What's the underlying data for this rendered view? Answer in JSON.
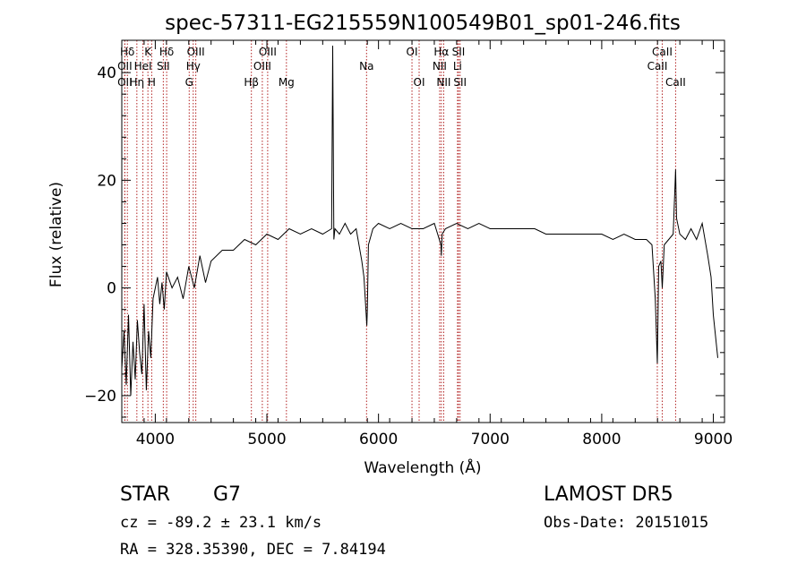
{
  "chart_data": {
    "type": "line",
    "title": "spec-57311-EG215559N100549B01_sp01-246.fits",
    "xlabel": "Wavelength (Å)",
    "ylabel": "Flux (relative)",
    "xlim": [
      3700,
      9100
    ],
    "ylim": [
      -25,
      46
    ],
    "xticks": [
      4000,
      5000,
      6000,
      7000,
      8000,
      9000
    ],
    "yticks": [
      -20,
      0,
      20,
      40
    ],
    "grid": false,
    "series": [
      {
        "color": "#000000",
        "x": [
          3700,
          3720,
          3740,
          3760,
          3780,
          3800,
          3820,
          3840,
          3860,
          3880,
          3900,
          3920,
          3940,
          3960,
          3980,
          4000,
          4020,
          4040,
          4060,
          4080,
          4100,
          4150,
          4200,
          4250,
          4300,
          4350,
          4400,
          4450,
          4500,
          4600,
          4700,
          4800,
          4900,
          5000,
          5100,
          5200,
          5300,
          5400,
          5500,
          5580,
          5590,
          5600,
          5610,
          5650,
          5700,
          5750,
          5800,
          5850,
          5870,
          5890,
          5895,
          5900,
          5910,
          5950,
          6000,
          6100,
          6200,
          6300,
          6400,
          6500,
          6560,
          6563,
          6570,
          6600,
          6700,
          6800,
          6900,
          7000,
          7100,
          7200,
          7300,
          7400,
          7500,
          7600,
          7700,
          7800,
          7900,
          8000,
          8100,
          8200,
          8300,
          8400,
          8450,
          8480,
          8498,
          8510,
          8530,
          8542,
          8560,
          8600,
          8640,
          8662,
          8670,
          8700,
          8750,
          8800,
          8850,
          8900,
          8950,
          8980,
          9000,
          9020,
          9040
        ],
        "y": [
          -15,
          -8,
          -18,
          -5,
          -20,
          -10,
          -17,
          -6,
          -12,
          -16,
          -3,
          -19,
          -8,
          -13,
          -2,
          0,
          2,
          -3,
          1,
          -4,
          3,
          0,
          2,
          -2,
          4,
          0,
          6,
          1,
          5,
          7,
          7,
          9,
          8,
          10,
          9,
          11,
          10,
          11,
          10,
          11,
          45,
          9,
          11,
          10,
          12,
          10,
          11,
          5,
          2,
          -5,
          -7,
          -4,
          8,
          11,
          12,
          11,
          12,
          11,
          11,
          12,
          8,
          6,
          10,
          11,
          12,
          11,
          12,
          11,
          11,
          11,
          11,
          11,
          10,
          10,
          10,
          10,
          10,
          10,
          9,
          10,
          9,
          9,
          8,
          -2,
          -14,
          4,
          5,
          0,
          8,
          9,
          10,
          22,
          13,
          10,
          9,
          11,
          9,
          12,
          6,
          2,
          -5,
          -9,
          -13
        ]
      }
    ],
    "line_markers": [
      {
        "label": "Hδ",
        "x": 3750,
        "row": 0
      },
      {
        "label": "OII",
        "x": 3727,
        "row": 1
      },
      {
        "label": "OII",
        "x": 3727,
        "row": 2
      },
      {
        "label": "Hη",
        "x": 3835,
        "row": 2
      },
      {
        "label": "K",
        "x": 3934,
        "row": 0
      },
      {
        "label": "HeI",
        "x": 3889,
        "row": 1
      },
      {
        "label": "H",
        "x": 3968,
        "row": 2
      },
      {
        "label": "Hδ",
        "x": 4102,
        "row": 0
      },
      {
        "label": "SII",
        "x": 4072,
        "row": 1
      },
      {
        "label": "OIII",
        "x": 4363,
        "row": 0
      },
      {
        "label": "Hγ",
        "x": 4340,
        "row": 1
      },
      {
        "label": "G",
        "x": 4304,
        "row": 2
      },
      {
        "label": "Hβ",
        "x": 4861,
        "row": 2
      },
      {
        "label": "OIII",
        "x": 5007,
        "row": 0
      },
      {
        "label": "OIII",
        "x": 4959,
        "row": 1
      },
      {
        "label": "Mg",
        "x": 5175,
        "row": 2
      },
      {
        "label": "Na",
        "x": 5893,
        "row": 1
      },
      {
        "label": "OI",
        "x": 6300,
        "row": 0
      },
      {
        "label": "OI",
        "x": 6364,
        "row": 2
      },
      {
        "label": "Hα",
        "x": 6563,
        "row": 0
      },
      {
        "label": "NII",
        "x": 6548,
        "row": 1
      },
      {
        "label": "NII",
        "x": 6584,
        "row": 2
      },
      {
        "label": "SII",
        "x": 6717,
        "row": 0
      },
      {
        "label": "Li",
        "x": 6708,
        "row": 1
      },
      {
        "label": "SII",
        "x": 6731,
        "row": 2
      },
      {
        "label": "CaII",
        "x": 8542,
        "row": 0
      },
      {
        "label": "CaII",
        "x": 8498,
        "row": 1
      },
      {
        "label": "CaII",
        "x": 8662,
        "row": 2
      }
    ],
    "marker_line_color": "#b22222"
  },
  "info": {
    "class_label": "STAR",
    "subclass": "G7",
    "survey": "LAMOST DR5",
    "cz": "cz = -89.2 ± 23.1 km/s",
    "obs_date": "Obs-Date: 20151015",
    "radec": "RA = 328.35390, DEC =   7.84194"
  }
}
